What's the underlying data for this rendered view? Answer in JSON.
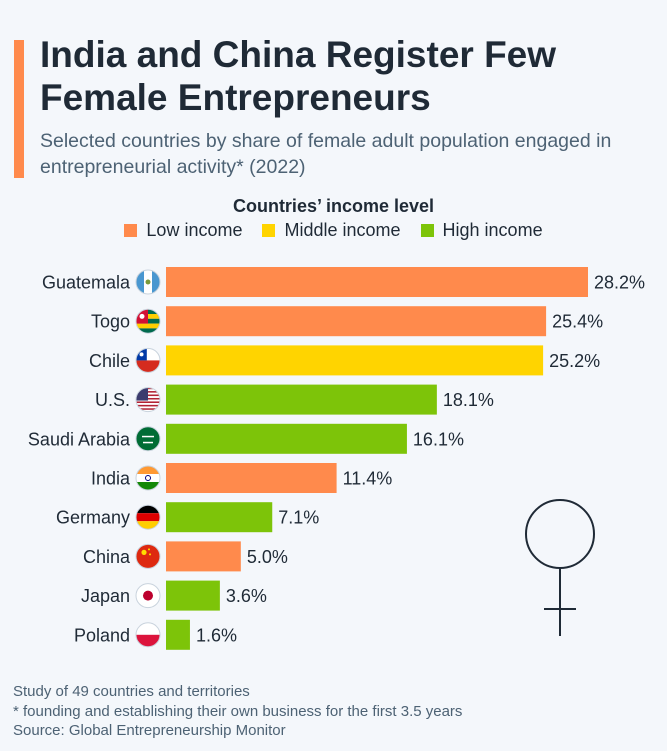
{
  "header": {
    "title": "India and China Register Few Female Entrepreneurs",
    "subtitle": "Selected countries by share of female adult population engaged in entrepreneurial activity* (2022)"
  },
  "colors": {
    "low": "#ff8a4c",
    "middle": "#ffd400",
    "high": "#7dc409",
    "accent": "#ff8a4c"
  },
  "chart_data": {
    "type": "bar",
    "orientation": "horizontal",
    "legend_title": "Countries’ income level",
    "legend": [
      {
        "key": "low",
        "label": "Low income"
      },
      {
        "key": "middle",
        "label": "Middle income"
      },
      {
        "key": "high",
        "label": "High income"
      }
    ],
    "categories": [
      "Guatemala",
      "Togo",
      "Chile",
      "U.S.",
      "Saudi Arabia",
      "India",
      "Germany",
      "China",
      "Japan",
      "Poland"
    ],
    "values": [
      28.2,
      25.4,
      25.2,
      18.1,
      16.1,
      11.4,
      7.1,
      5.0,
      3.6,
      1.6
    ],
    "value_labels": [
      "28.2%",
      "25.4%",
      "25.2%",
      "18.1%",
      "16.1%",
      "11.4%",
      "7.1%",
      "5.0%",
      "3.6%",
      "1.6%"
    ],
    "income_level": [
      "low",
      "low",
      "middle",
      "high",
      "high",
      "low",
      "high",
      "low",
      "high",
      "high"
    ],
    "flag_icons": [
      "guatemala-flag-icon",
      "togo-flag-icon",
      "chile-flag-icon",
      "us-flag-icon",
      "saudi-arabia-flag-icon",
      "india-flag-icon",
      "germany-flag-icon",
      "china-flag-icon",
      "japan-flag-icon",
      "poland-flag-icon"
    ],
    "unit": "%",
    "xlim": [
      0,
      28.2
    ],
    "grid": false
  },
  "decoration": {
    "icon": "female-symbol-icon"
  },
  "footer": {
    "note": "Study of 49 countries and territories",
    "footnote": "* founding and establishing their own business for the first 3.5 years",
    "source": "Source: Global Entrepreneurship Monitor"
  }
}
